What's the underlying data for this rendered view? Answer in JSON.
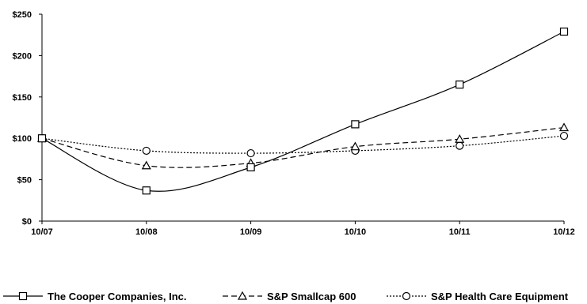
{
  "chart_data": {
    "type": "line",
    "categories": [
      "10/07",
      "10/08",
      "10/09",
      "10/10",
      "10/11",
      "10/12"
    ],
    "ylim": [
      0,
      250
    ],
    "yticks": [
      0,
      50,
      100,
      150,
      200,
      250
    ],
    "ytick_labels": [
      "$0",
      "$50",
      "$100",
      "$150",
      "$200",
      "$250"
    ],
    "grid": false,
    "legend_position": "bottom",
    "series": [
      {
        "name": "The Cooper Companies, Inc.",
        "values": [
          100,
          37,
          65,
          117,
          165,
          229
        ],
        "marker": "square",
        "line_style": "solid",
        "color": "#000000"
      },
      {
        "name": "S&P Smallcap 600",
        "values": [
          100,
          67,
          70,
          90,
          99,
          113
        ],
        "marker": "triangle",
        "line_style": "dashed",
        "color": "#000000"
      },
      {
        "name": "S&P Health Care Equipment",
        "values": [
          100,
          85,
          82,
          85,
          91,
          103
        ],
        "marker": "circle",
        "line_style": "dotted",
        "color": "#000000"
      }
    ]
  }
}
